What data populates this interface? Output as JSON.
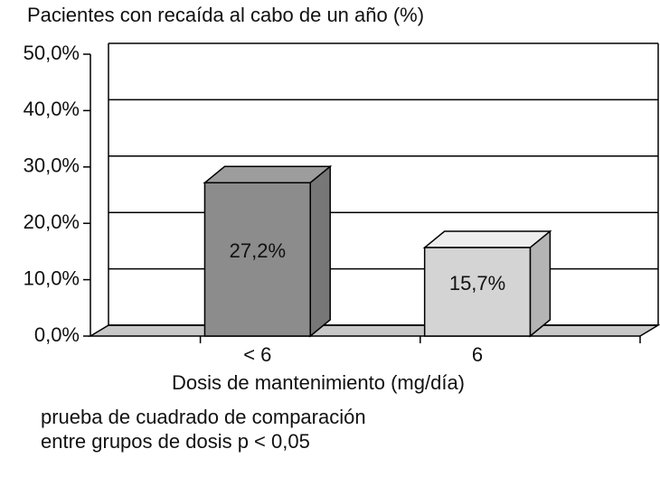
{
  "chart_data": {
    "type": "bar3d",
    "title": "Pacientes con recaída al cabo de un año (%)",
    "x_label": "Dosis de mantenimiento (mg/día)",
    "notes": [
      "prueba de cuadrado de comparación",
      "entre grupos de dosis p < 0,05"
    ],
    "categories": [
      "< 6",
      "6"
    ],
    "values": [
      27.2,
      15.7
    ],
    "value_labels": [
      "27,2%",
      "15,7%"
    ],
    "colors": [
      "#8c8c8c",
      "#d4d4d4"
    ],
    "ylim": [
      0,
      50
    ],
    "yticks": [
      {
        "value": 0,
        "label": "0,0%"
      },
      {
        "value": 10,
        "label": "10,0%"
      },
      {
        "value": 20,
        "label": "20,0%"
      },
      {
        "value": 30,
        "label": "30,0%"
      },
      {
        "value": 40,
        "label": "40,0%"
      },
      {
        "value": 50,
        "label": "50,0%"
      }
    ],
    "grid": true
  }
}
